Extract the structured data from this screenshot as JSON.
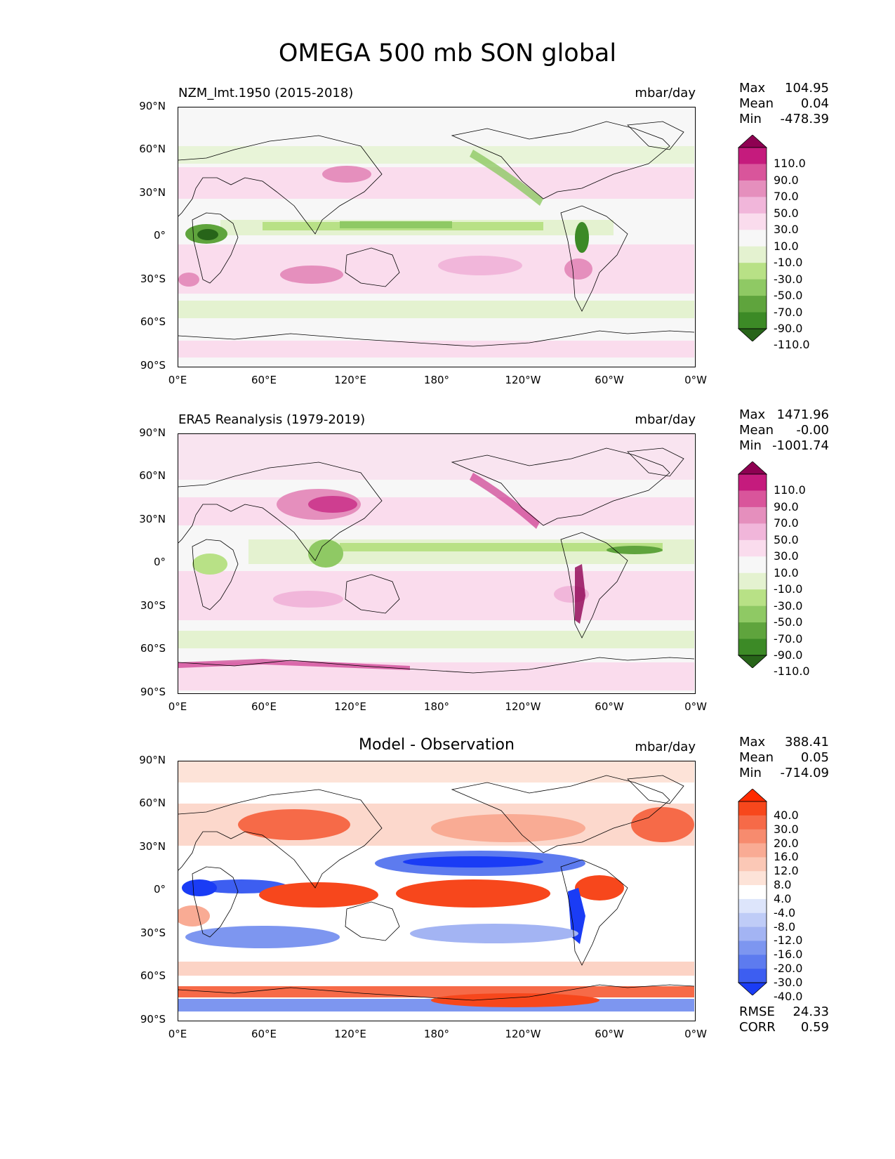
{
  "figure": {
    "title": "OMEGA 500 mb SON global",
    "lat_ticks": [
      "90°N",
      "60°N",
      "30°N",
      "0°",
      "30°S",
      "60°S",
      "90°S"
    ],
    "lon_ticks": [
      "0°E",
      "60°E",
      "120°E",
      "180°",
      "120°W",
      "60°W",
      "0°W"
    ]
  },
  "panels": [
    {
      "title": "NZM_lmt.1950 (2015-2018)",
      "units": "mbar/day",
      "stats": {
        "max_label": "Max",
        "max": "104.95",
        "mean_label": "Mean",
        "mean": "0.04",
        "min_label": "Min",
        "min": "-478.39"
      },
      "colorbar": {
        "labels": [
          "110.0",
          "90.0",
          "70.0",
          "50.0",
          "30.0",
          "10.0",
          "-10.0",
          "-30.0",
          "-50.0",
          "-70.0",
          "-90.0",
          "-110.0"
        ],
        "colors": [
          "#8e0152",
          "#c51b7d",
          "#d9559b",
          "#e58fbd",
          "#f1b6da",
          "#fadced",
          "#f7f7f7",
          "#e4f2d0",
          "#b8e186",
          "#8fc964",
          "#5fa43d",
          "#3c8a26",
          "#276419"
        ]
      }
    },
    {
      "title": "ERA5 Reanalysis (1979-2019)",
      "units": "mbar/day",
      "stats": {
        "max_label": "Max",
        "max": "1471.96",
        "mean_label": "Mean",
        "mean": "-0.00",
        "min_label": "Min",
        "min": "-1001.74"
      },
      "colorbar": {
        "labels": [
          "110.0",
          "90.0",
          "70.0",
          "50.0",
          "30.0",
          "10.0",
          "-10.0",
          "-30.0",
          "-50.0",
          "-70.0",
          "-90.0",
          "-110.0"
        ],
        "colors": [
          "#8e0152",
          "#c51b7d",
          "#d9559b",
          "#e58fbd",
          "#f1b6da",
          "#fadced",
          "#f7f7f7",
          "#e4f2d0",
          "#b8e186",
          "#8fc964",
          "#5fa43d",
          "#3c8a26",
          "#276419"
        ]
      }
    },
    {
      "title": "Model - Observation",
      "units": "mbar/day",
      "stats": {
        "max_label": "Max",
        "max": "388.41",
        "mean_label": "Mean",
        "mean": "0.05",
        "min_label": "Min",
        "min": "-714.09"
      },
      "colorbar": {
        "labels": [
          "40.0",
          "30.0",
          "20.0",
          "16.0",
          "12.0",
          "8.0",
          "4.0",
          "-4.0",
          "-8.0",
          "-12.0",
          "-16.0",
          "-20.0",
          "-30.0",
          "-40.0"
        ],
        "colors": [
          "#ff2a00",
          "#f7471c",
          "#f66a48",
          "#f78b6e",
          "#f9ab94",
          "#fbc8b6",
          "#fde3d8",
          "#ffffff",
          "#dde5fb",
          "#bfccf7",
          "#a3b4f3",
          "#7d96f0",
          "#5d7bef",
          "#3d5ef1",
          "#1a3cf5"
        ]
      },
      "rmse_label": "RMSE",
      "rmse": "24.33",
      "corr_label": "CORR",
      "corr": "0.59"
    }
  ]
}
